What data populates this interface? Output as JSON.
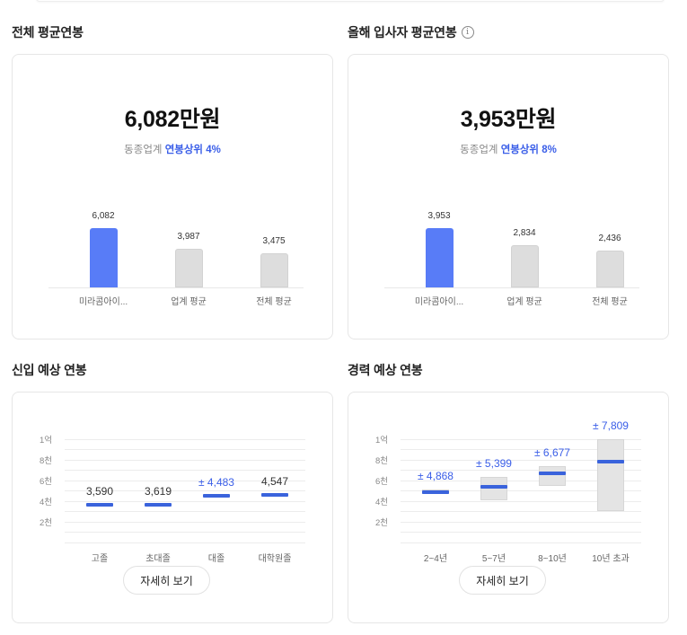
{
  "sections": {
    "total_avg": {
      "title": "전체 평균연봉",
      "amount": "6,082만원",
      "rank_prefix": "동종업계",
      "rank_highlight": "연봉상위 4%"
    },
    "new_hire_avg": {
      "title": "올해 입사자 평균연봉",
      "info_icon": "info-icon",
      "amount": "3,953만원",
      "rank_prefix": "동종업계",
      "rank_highlight": "연봉상위 8%"
    },
    "entry_expected": {
      "title": "신입 예상 연봉",
      "button_label": "자세히 보기"
    },
    "career_expected": {
      "title": "경력 예상 연봉",
      "button_label": "자세히 보기"
    }
  },
  "colors": {
    "accent_blue": "#3a5ee8",
    "bar_blue": "#587cf7",
    "bar_gray": "#dddddd",
    "mean_line": "#3a63dc",
    "range_box": "#e4e4e4"
  },
  "chart_data": [
    {
      "type": "bar",
      "title": "전체 평균연봉",
      "categories": [
        "미라콤아이...",
        "업계 평균",
        "전체 평균"
      ],
      "values": [
        6082,
        3987,
        3475
      ],
      "value_labels": [
        "6,082",
        "3,987",
        "3,475"
      ],
      "highlight_index": 0,
      "unit": "만원"
    },
    {
      "type": "bar",
      "title": "올해 입사자 평균연봉",
      "categories": [
        "미라콤아이...",
        "업계 평균",
        "전체 평균"
      ],
      "values": [
        3953,
        2834,
        2436
      ],
      "value_labels": [
        "3,953",
        "2,834",
        "2,436"
      ],
      "highlight_index": 0,
      "unit": "만원"
    },
    {
      "type": "scatter",
      "title": "신입 예상 연봉",
      "categories": [
        "고졸",
        "초대졸",
        "대졸",
        "대학원졸"
      ],
      "values": [
        3590,
        3619,
        4483,
        4547
      ],
      "value_labels": [
        "3,590",
        "3,619",
        "± 4,483",
        "4,547"
      ],
      "highlight_index": 2,
      "yticks": [
        "1억",
        "8천",
        "6천",
        "4천",
        "2천"
      ],
      "ytick_values": [
        10000,
        8000,
        6000,
        4000,
        2000
      ],
      "ylim": [
        0,
        10000
      ],
      "grid": true
    },
    {
      "type": "scatter",
      "title": "경력 예상 연봉",
      "categories": [
        "2~4년",
        "5~7년",
        "8~10년",
        "10년 초과"
      ],
      "values": [
        4868,
        5399,
        6677,
        7809
      ],
      "value_labels": [
        "± 4,868",
        "± 5,399",
        "± 6,677",
        "± 7,809"
      ],
      "ranges": [
        [
          4700,
          5100
        ],
        [
          4000,
          6300
        ],
        [
          5500,
          7400
        ],
        [
          3000,
          10000
        ]
      ],
      "yticks": [
        "1억",
        "8천",
        "6천",
        "4천",
        "2천"
      ],
      "ytick_values": [
        10000,
        8000,
        6000,
        4000,
        2000
      ],
      "ylim": [
        0,
        10000
      ],
      "grid": true
    }
  ]
}
